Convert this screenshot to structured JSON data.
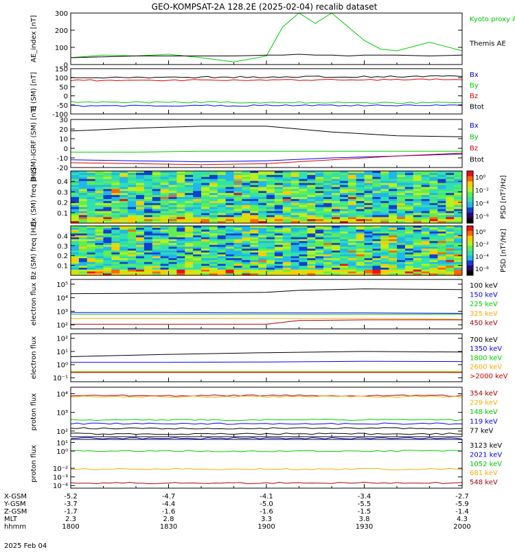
{
  "title": "GEO-KOMPSAT-2A 128.2E (2025-02-04) recalib dataset",
  "time_axis": {
    "tick_labels": [
      "1800",
      "1830",
      "1900",
      "1930",
      "2000"
    ],
    "rows": [
      {
        "label": "X-GSM",
        "values": [
          "-5.2",
          "-4.7",
          "-4.1",
          "-3.4",
          "-2.7"
        ]
      },
      {
        "label": "Y-GSM",
        "values": [
          "-3.7",
          "-4.4",
          "-5.0",
          "-5.5",
          "-5.9"
        ]
      },
      {
        "label": "Z-GSM",
        "values": [
          "-1.7",
          "-1.6",
          "-1.6",
          "-1.5",
          "-1.4"
        ]
      },
      {
        "label": "MLT",
        "values": [
          "2.3",
          "2.8",
          "3.3",
          "3.8",
          "4.3"
        ]
      },
      {
        "label": "hhmm",
        "values": [
          "1800",
          "1830",
          "1900",
          "1930",
          "2000"
        ]
      }
    ],
    "date_label": "2025 Feb 04"
  },
  "colors": {
    "black": "#000000",
    "blue": "#0000ff",
    "green": "#00cc00",
    "red": "#dd0000",
    "orange": "#ffaa00",
    "darkred": "#aa0000"
  },
  "chart_data": [
    {
      "type": "line",
      "ylabel": "AE_index [nT]",
      "ylim": [
        0,
        300
      ],
      "yticks": [
        "0",
        "100",
        "200",
        "300"
      ],
      "x": [
        "18:00",
        "18:10",
        "18:20",
        "18:30",
        "18:40",
        "18:50",
        "19:00",
        "19:05",
        "19:10",
        "19:15",
        "19:20",
        "19:25",
        "19:30",
        "19:35",
        "19:40",
        "19:50",
        "20:00"
      ],
      "series": [
        {
          "name": "Kyoto proxy AE",
          "color": "#00cc00",
          "values": [
            40,
            55,
            50,
            60,
            40,
            15,
            50,
            220,
            300,
            240,
            300,
            220,
            140,
            90,
            80,
            130,
            80
          ]
        },
        {
          "name": "Themis AE",
          "color": "#000000",
          "values": [
            40,
            45,
            50,
            50,
            50,
            50,
            55,
            55,
            60,
            55,
            55,
            50,
            55,
            55,
            55,
            50,
            55
          ]
        }
      ]
    },
    {
      "type": "line",
      "ylabel": "B (SM) [nT]",
      "ylim": [
        -100,
        150
      ],
      "yticks": [
        "-100",
        "-50",
        "0",
        "50",
        "100",
        "150"
      ],
      "x": [
        "18:00",
        "20:00"
      ],
      "series": [
        {
          "name": "Bx",
          "color": "#0000ff",
          "values": [
            -55,
            -52
          ]
        },
        {
          "name": "By",
          "color": "#00cc00",
          "values": [
            -35,
            -38
          ]
        },
        {
          "name": "Bz",
          "color": "#dd0000",
          "values": [
            85,
            90
          ]
        },
        {
          "name": "Btot",
          "color": "#000000",
          "values": [
            100,
            108
          ]
        }
      ]
    },
    {
      "type": "line",
      "ylabel": "B (SM)-IGRF (SM) [nT]",
      "ylim": [
        -20,
        30
      ],
      "yticks": [
        "-20",
        "-10",
        "0",
        "10",
        "20",
        "30"
      ],
      "x": [
        "18:00",
        "18:20",
        "18:40",
        "19:00",
        "19:20",
        "19:40",
        "20:00"
      ],
      "series": [
        {
          "name": "Bx",
          "color": "#0000ff",
          "values": [
            -12,
            -13,
            -14,
            -13,
            -10,
            -8,
            -6
          ]
        },
        {
          "name": "By",
          "color": "#00cc00",
          "values": [
            -4,
            -4,
            -3,
            -3,
            -3,
            -3,
            -3
          ]
        },
        {
          "name": "Bz",
          "color": "#dd0000",
          "values": [
            -15,
            -16,
            -17,
            -16,
            -12,
            -8,
            -5
          ]
        },
        {
          "name": "Btot",
          "color": "#000000",
          "values": [
            18,
            21,
            23,
            23,
            17,
            13,
            12
          ]
        }
      ]
    },
    {
      "type": "heatmap",
      "ylabel": "Bx (SM) freq [Hz]",
      "ylim": [
        0,
        0.5
      ],
      "yticks": [
        "0.1",
        "0.2",
        "0.3",
        "0.4"
      ],
      "colorbar_label": "PSD [nT²/Hz]",
      "colorbar_ticks": [
        "10⁰",
        "10⁻²",
        "10⁻⁴",
        "10⁻⁶"
      ]
    },
    {
      "type": "heatmap",
      "ylabel": "Bz (SM) freq [Hz]",
      "ylim": [
        0,
        0.5
      ],
      "yticks": [
        "0.1",
        "0.2",
        "0.3",
        "0.4"
      ],
      "colorbar_label": "PSD [nT²/Hz]",
      "colorbar_ticks": [
        "10⁰",
        "10⁻²",
        "10⁻⁴",
        "10⁻⁶"
      ]
    },
    {
      "type": "line",
      "ylabel": "electron flux",
      "yscale": "log",
      "yticks": [
        "10²",
        "10³",
        "10⁴",
        "10⁵"
      ],
      "x": [
        "18:00",
        "18:30",
        "19:00",
        "19:10",
        "19:30",
        "20:00"
      ],
      "series": [
        {
          "name": "100 keV",
          "color": "#000000",
          "values": [
            20000,
            22000,
            25000,
            35000,
            45000,
            40000
          ]
        },
        {
          "name": "150 keV",
          "color": "#0000ff",
          "values": [
            800,
            800,
            750,
            750,
            750,
            700
          ]
        },
        {
          "name": "225 keV",
          "color": "#00cc00",
          "values": [
            600,
            600,
            600,
            600,
            600,
            600
          ]
        },
        {
          "name": "325 keV",
          "color": "#ffaa00",
          "values": [
            300,
            300,
            300,
            300,
            300,
            250
          ]
        },
        {
          "name": "450 keV",
          "color": "#aa0000",
          "values": [
            110,
            110,
            110,
            210,
            230,
            230
          ]
        }
      ]
    },
    {
      "type": "line",
      "ylabel": "electron flux",
      "yscale": "log",
      "yticks": [
        "10⁻¹",
        "10⁰",
        "10¹",
        "10²"
      ],
      "x": [
        "18:00",
        "18:30",
        "19:00",
        "19:30",
        "20:00"
      ],
      "series": [
        {
          "name": "700 keV",
          "color": "#000000",
          "values": [
            4,
            6,
            8,
            10,
            9
          ]
        },
        {
          "name": "1350 keV",
          "color": "#0000ff",
          "values": [
            1.5,
            1.5,
            1.6,
            1.8,
            1.7
          ]
        },
        {
          "name": "1800 keV",
          "color": "#00cc00",
          "values": [
            0.3,
            0.3,
            0.3,
            0.3,
            0.3
          ]
        },
        {
          "name": "2600 keV",
          "color": "#ffaa00",
          "values": [
            0.28,
            0.28,
            0.28,
            0.28,
            0.28
          ]
        },
        {
          "name": ">2000 keV",
          "color": "#dd0000",
          "values": [
            0.25,
            0.25,
            0.25,
            0.25,
            0.25
          ]
        }
      ]
    },
    {
      "type": "line",
      "ylabel": "proton flux",
      "yscale": "log",
      "yticks": [
        "10²",
        "10³",
        "10⁴"
      ],
      "x": [
        "18:00",
        "19:00",
        "20:00"
      ],
      "series": [
        {
          "name": "354 keV",
          "color": "#aa0000",
          "values": [
            8000,
            8000,
            8000
          ]
        },
        {
          "name": "229 keV",
          "color": "#ffaa00",
          "values": [
            7000,
            7000,
            7000
          ]
        },
        {
          "name": "148 keV",
          "color": "#00cc00",
          "values": [
            400,
            400,
            400
          ]
        },
        {
          "name": "119 keV",
          "color": "#0000ff",
          "values": [
            250,
            250,
            250
          ]
        },
        {
          "name": "77 keV",
          "color": "#000000",
          "values": [
            140,
            140,
            140
          ]
        }
      ]
    },
    {
      "type": "line",
      "ylabel": "proton flux",
      "yscale": "log",
      "yticks": [
        "10⁻⁴",
        "10⁻³",
        "10⁻²",
        "10⁰",
        "10¹"
      ],
      "x": [
        "18:00",
        "19:00",
        "20:00"
      ],
      "series": [
        {
          "name": "3123 keV",
          "color": "#000000",
          "values": [
            100,
            100,
            100
          ]
        },
        {
          "name": "2021 keV",
          "color": "#0000ff",
          "values": [
            30,
            30,
            30
          ]
        },
        {
          "name": "1052 keV",
          "color": "#00cc00",
          "values": [
            1,
            1,
            1
          ]
        },
        {
          "name": "681 keV",
          "color": "#ffaa00",
          "values": [
            0.008,
            0.008,
            0.008
          ]
        },
        {
          "name": "548 keV",
          "color": "#aa0000",
          "values": [
            0.0002,
            0.0002,
            0.0002
          ]
        }
      ]
    }
  ]
}
